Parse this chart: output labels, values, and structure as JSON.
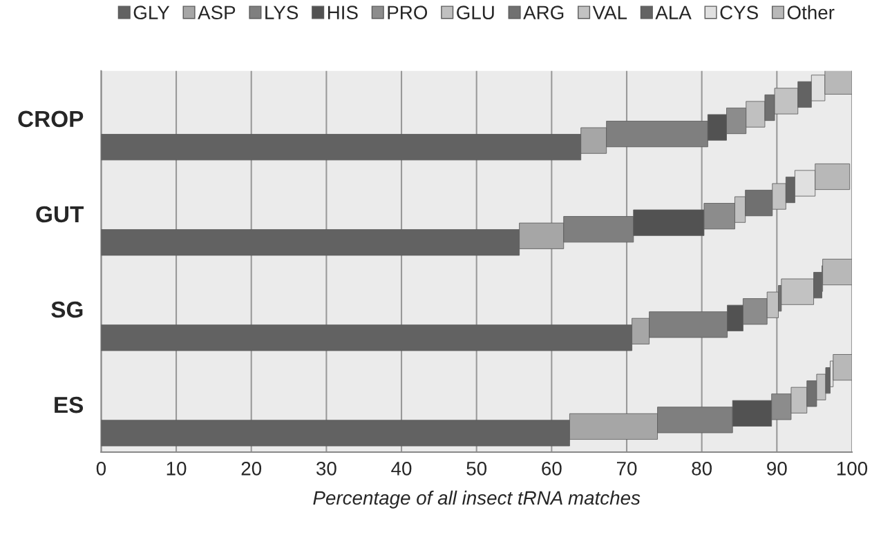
{
  "chart_data": {
    "type": "bar",
    "orientation": "horizontal",
    "stacked": true,
    "categories": [
      "CROP",
      "GUT",
      "SG",
      "ES"
    ],
    "series": [
      {
        "name": "GLY",
        "color": "#626262",
        "values": [
          63.9,
          55.7,
          70.7,
          62.4
        ]
      },
      {
        "name": "ASP",
        "color": "#a6a6a6",
        "values": [
          3.4,
          5.9,
          2.3,
          11.7
        ]
      },
      {
        "name": "LYS",
        "color": "#7f7f7f",
        "values": [
          13.5,
          9.3,
          10.4,
          10.0
        ]
      },
      {
        "name": "HIS",
        "color": "#525252",
        "values": [
          2.5,
          9.4,
          2.1,
          5.2
        ]
      },
      {
        "name": "PRO",
        "color": "#8c8c8c",
        "values": [
          2.6,
          4.1,
          3.2,
          2.6
        ]
      },
      {
        "name": "GLU",
        "color": "#c0c0c0",
        "values": [
          2.5,
          1.4,
          1.5,
          2.1
        ]
      },
      {
        "name": "ARG",
        "color": "#707070",
        "values": [
          1.3,
          3.6,
          0.4,
          1.3
        ]
      },
      {
        "name": "VAL",
        "color": "#c2c2c2",
        "values": [
          3.1,
          1.8,
          4.3,
          1.2
        ]
      },
      {
        "name": "ALA",
        "color": "#636363",
        "values": [
          1.8,
          1.2,
          1.1,
          0.6
        ]
      },
      {
        "name": "CYS",
        "color": "#e0e0e0",
        "values": [
          1.8,
          2.7,
          0.1,
          0.4
        ]
      },
      {
        "name": "Other",
        "color": "#b8b8b8",
        "values": [
          3.6,
          4.6,
          3.9,
          2.5
        ]
      }
    ],
    "xlim": [
      0,
      100
    ],
    "xticks": [
      0,
      10,
      20,
      30,
      40,
      50,
      60,
      70,
      80,
      90,
      100
    ],
    "xlabel": "Percentage of all insect tRNA matches",
    "grid": "x",
    "legend": "top"
  }
}
